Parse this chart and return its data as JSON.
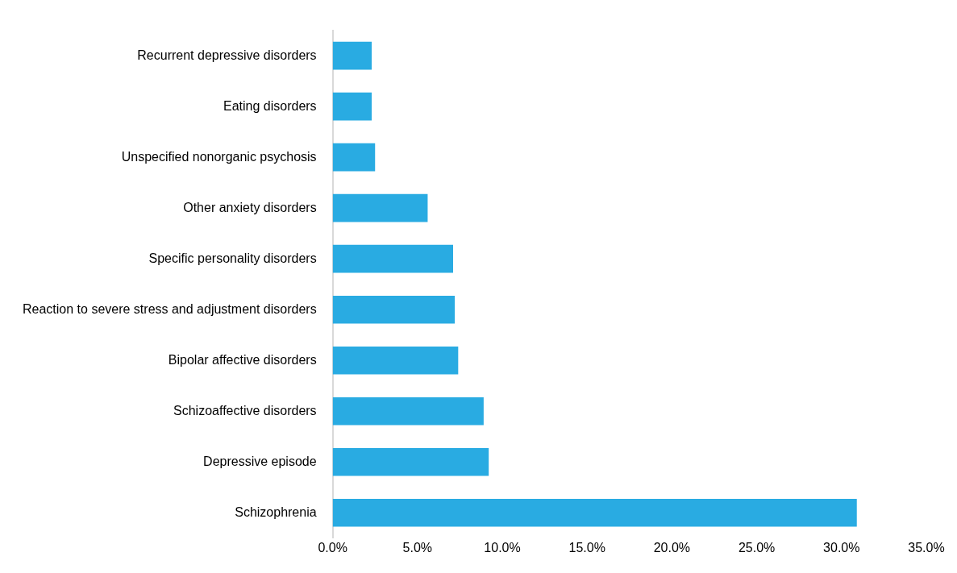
{
  "chart_data": {
    "type": "bar",
    "orientation": "horizontal",
    "categories": [
      "Recurrent depressive disorders",
      "Eating disorders",
      "Unspecified nonorganic psychosis",
      "Other anxiety disorders",
      "Specific personality disorders",
      "Reaction to severe stress and adjustment disorders",
      "Bipolar affective disorders",
      "Schizoaffective disorders",
      "Depressive episode",
      "Schizophrenia"
    ],
    "values": [
      2.3,
      2.3,
      2.5,
      5.6,
      7.1,
      7.2,
      7.4,
      8.9,
      9.2,
      30.9
    ],
    "color": "#29abe2",
    "xlim": [
      0,
      35
    ],
    "xticks": [
      {
        "value": 0,
        "label": "0.0%"
      },
      {
        "value": 5,
        "label": "5.0%"
      },
      {
        "value": 10,
        "label": "10.0%"
      },
      {
        "value": 15,
        "label": "15.0%"
      },
      {
        "value": 20,
        "label": "20.0%"
      },
      {
        "value": 25,
        "label": "25.0%"
      },
      {
        "value": 30,
        "label": "30.0%"
      },
      {
        "value": 35,
        "label": "35.0%"
      }
    ],
    "grid": false,
    "legend": false
  }
}
